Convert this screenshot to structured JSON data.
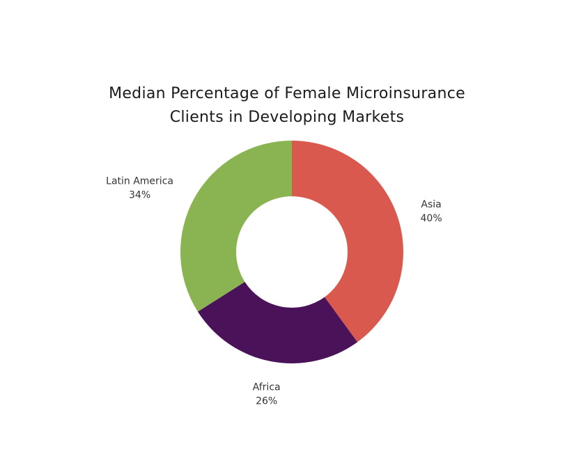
{
  "chart_data": {
    "type": "pie",
    "title_lines": [
      "Median Percentage of Female Microinsurance",
      "Clients in Developing Markets"
    ],
    "categories": [
      "Asia",
      "Africa",
      "Latin America"
    ],
    "values": [
      40,
      26,
      34
    ],
    "value_labels": [
      "40%",
      "26%",
      "34%"
    ],
    "colors": [
      "#d9594f",
      "#4a1259",
      "#8ab352"
    ],
    "donut": true,
    "legend": "none"
  }
}
